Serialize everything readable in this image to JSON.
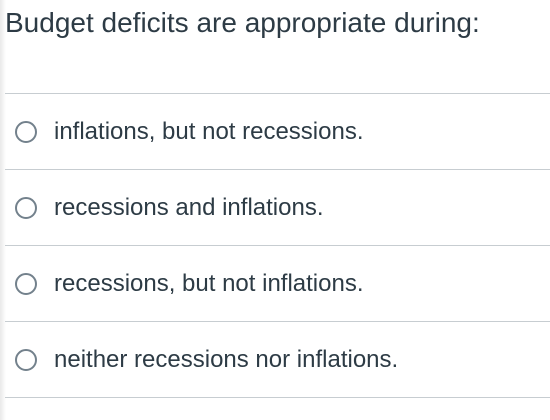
{
  "question": {
    "text": "Budget deficits are appropriate during:"
  },
  "answers": [
    {
      "label": "inflations, but not recessions.",
      "selected": false
    },
    {
      "label": "recessions and inflations.",
      "selected": false
    },
    {
      "label": "recessions, but not inflations.",
      "selected": false
    },
    {
      "label": "neither recessions nor inflations.",
      "selected": false
    }
  ]
}
